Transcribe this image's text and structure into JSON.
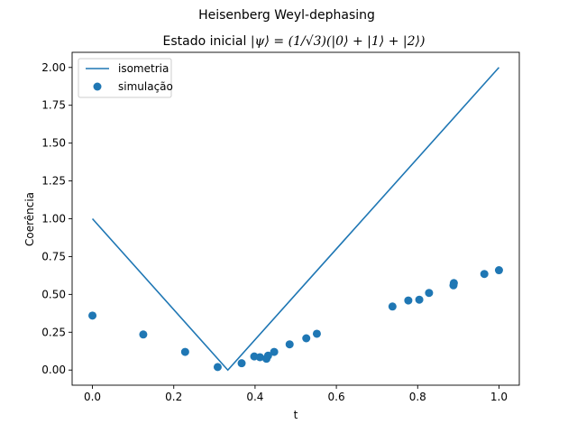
{
  "chart_data": {
    "type": "scatter",
    "title": "Heisenberg Weyl-dephasing",
    "subtitle_prefix": "Estado inicial ",
    "subtitle_math": "|ψ⟩ = (1/√3)(|0⟩ + |1⟩ + |2⟩)",
    "xlabel": "t",
    "ylabel": "Coerência",
    "xlim": [
      -0.05,
      1.05
    ],
    "ylim": [
      -0.1,
      2.1
    ],
    "xticks": [
      0.0,
      0.2,
      0.4,
      0.6,
      0.8,
      1.0
    ],
    "xtick_labels": [
      "0.0",
      "0.2",
      "0.4",
      "0.6",
      "0.8",
      "1.0"
    ],
    "yticks": [
      0.0,
      0.25,
      0.5,
      0.75,
      1.0,
      1.25,
      1.5,
      1.75,
      2.0
    ],
    "ytick_labels": [
      "0.00",
      "0.25",
      "0.50",
      "0.75",
      "1.00",
      "1.25",
      "1.50",
      "1.75",
      "2.00"
    ],
    "grid": false,
    "legend_position": "top-left",
    "series": [
      {
        "name": "isometria",
        "type": "line",
        "color": "#1f77b4",
        "x": [
          0.0,
          0.333,
          1.0
        ],
        "y": [
          1.0,
          0.0,
          2.0
        ]
      },
      {
        "name": "simulação",
        "type": "scatter",
        "color": "#1f77b4",
        "x": [
          0.0,
          0.125,
          0.228,
          0.308,
          0.367,
          0.398,
          0.412,
          0.428,
          0.432,
          0.447,
          0.485,
          0.526,
          0.552,
          0.738,
          0.777,
          0.804,
          0.828,
          0.888,
          0.889,
          0.964,
          1.0
        ],
        "y": [
          0.36,
          0.235,
          0.12,
          0.02,
          0.045,
          0.09,
          0.085,
          0.075,
          0.095,
          0.12,
          0.17,
          0.21,
          0.24,
          0.42,
          0.46,
          0.465,
          0.51,
          0.56,
          0.575,
          0.635,
          0.66
        ]
      }
    ]
  }
}
